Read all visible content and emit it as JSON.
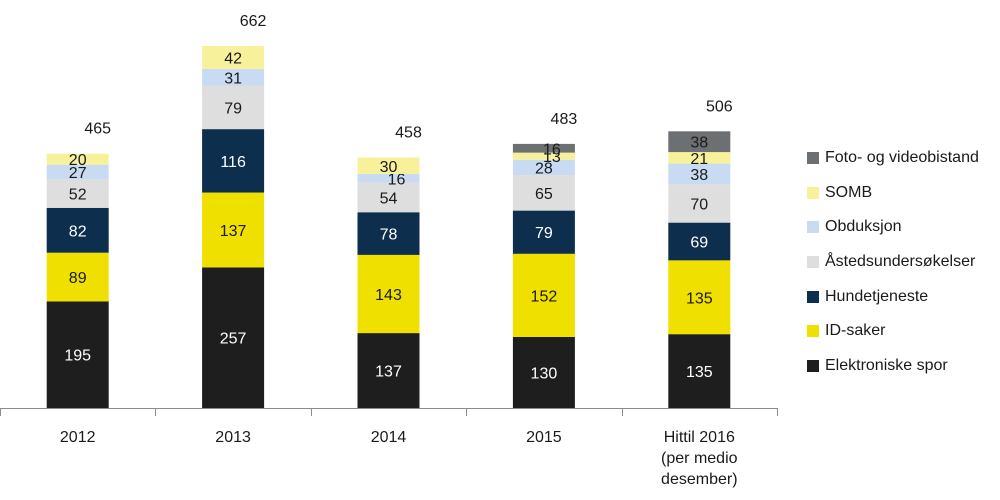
{
  "chart_data": {
    "type": "bar",
    "stacked": true,
    "title": "",
    "xlabel": "",
    "ylabel": "",
    "ylim": [
      0,
      662
    ],
    "grid": false,
    "legend_position": "right",
    "categories": [
      "2012",
      "2013",
      "2014",
      "2015",
      "Hittil 2016\n(per medio\ndesember)"
    ],
    "totals": [
      465,
      662,
      458,
      483,
      506
    ],
    "series": [
      {
        "name": "Elektroniske spor",
        "color": "#1e1e1e",
        "label_color": "#ffffff",
        "values": [
          195,
          257,
          137,
          130,
          135
        ]
      },
      {
        "name": "ID-saker",
        "color": "#f0e000",
        "label_color": "#1a1a1a",
        "values": [
          89,
          137,
          143,
          152,
          135
        ]
      },
      {
        "name": "Hundetjeneste",
        "color": "#0d2f4d",
        "label_color": "#ffffff",
        "values": [
          82,
          116,
          78,
          79,
          69
        ]
      },
      {
        "name": "Åstedsundersøkelser",
        "color": "#dedede",
        "label_color": "#1a1a1a",
        "values": [
          52,
          79,
          54,
          65,
          70
        ]
      },
      {
        "name": "Obduksjon",
        "color": "#c9dbf2",
        "label_color": "#1a1a1a",
        "values": [
          27,
          31,
          16,
          28,
          38
        ]
      },
      {
        "name": "SOMB",
        "color": "#f7f19c",
        "label_color": "#1a1a1a",
        "values": [
          20,
          42,
          30,
          13,
          21
        ]
      },
      {
        "name": "Foto- og videobistand",
        "color": "#6d7073",
        "label_color": "#1a1a1a",
        "values": [
          0,
          0,
          0,
          16,
          38
        ]
      }
    ],
    "legend_order": [
      "Foto- og videobistand",
      "SOMB",
      "Obduksjon",
      "Åstedsundersøkelser",
      "Hundetjeneste",
      "ID-saker",
      "Elektroniske spor"
    ]
  }
}
